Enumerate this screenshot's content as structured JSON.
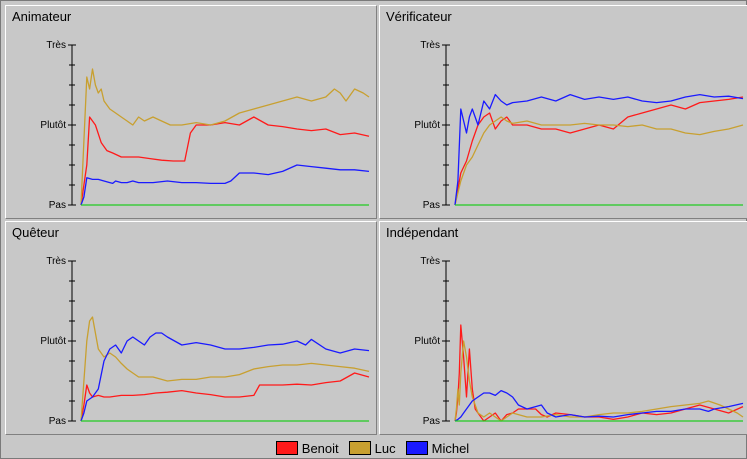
{
  "colors": {
    "Benoit": "#ff1a1a",
    "Luc": "#c8a030",
    "Michel": "#1a1aff",
    "baseline": "#22cc22"
  },
  "legend": {
    "items": [
      {
        "label": "Benoit",
        "color": "#ff1a1a"
      },
      {
        "label": "Luc",
        "color": "#c8a030"
      },
      {
        "label": "Michel",
        "color": "#1a1aff"
      }
    ]
  },
  "chart_data": [
    {
      "type": "line",
      "title": "Animateur",
      "yticks": [
        "Pas",
        "Plutôt",
        "Très"
      ],
      "ylim": [
        0,
        2
      ],
      "xlim": [
        0,
        100
      ],
      "series": [
        {
          "name": "Benoit",
          "x": [
            0,
            2,
            3,
            4,
            5,
            7,
            9,
            11,
            14,
            17,
            20,
            24,
            28,
            32,
            36,
            38,
            40,
            42,
            45,
            50,
            55,
            60,
            65,
            70,
            75,
            80,
            85,
            90,
            95,
            100
          ],
          "y": [
            0,
            0.5,
            1.1,
            1.05,
            1.0,
            0.78,
            0.68,
            0.65,
            0.6,
            0.6,
            0.6,
            0.58,
            0.56,
            0.55,
            0.55,
            0.9,
            1.0,
            1.0,
            1.0,
            1.03,
            1.0,
            1.1,
            1.0,
            0.98,
            0.95,
            0.93,
            0.95,
            0.88,
            0.9,
            0.86
          ]
        },
        {
          "name": "Luc",
          "x": [
            0,
            1,
            2,
            3,
            4,
            5,
            6,
            7,
            8,
            10,
            12,
            14,
            16,
            18,
            20,
            22,
            25,
            28,
            31,
            35,
            40,
            45,
            50,
            55,
            60,
            65,
            70,
            75,
            80,
            85,
            88,
            90,
            92,
            95,
            98,
            100
          ],
          "y": [
            0,
            0.8,
            1.6,
            1.45,
            1.7,
            1.5,
            1.4,
            1.45,
            1.3,
            1.2,
            1.15,
            1.1,
            1.05,
            1.0,
            1.1,
            1.05,
            1.1,
            1.05,
            1.0,
            1.0,
            1.03,
            1.0,
            1.05,
            1.15,
            1.2,
            1.25,
            1.3,
            1.35,
            1.3,
            1.35,
            1.45,
            1.4,
            1.3,
            1.45,
            1.4,
            1.35
          ]
        },
        {
          "name": "Michel",
          "x": [
            0,
            1,
            2,
            4,
            6,
            8,
            10,
            11,
            12,
            14,
            16,
            18,
            20,
            25,
            30,
            35,
            40,
            45,
            50,
            52,
            55,
            60,
            65,
            70,
            75,
            80,
            85,
            90,
            95,
            100
          ],
          "y": [
            0,
            0.1,
            0.34,
            0.32,
            0.32,
            0.3,
            0.28,
            0.27,
            0.3,
            0.28,
            0.28,
            0.3,
            0.28,
            0.28,
            0.3,
            0.28,
            0.28,
            0.27,
            0.27,
            0.3,
            0.4,
            0.4,
            0.38,
            0.42,
            0.5,
            0.48,
            0.46,
            0.44,
            0.44,
            0.42
          ]
        },
        {
          "name": "",
          "x": [
            0,
            100
          ],
          "y": [
            0,
            0
          ],
          "role": "baseline"
        }
      ]
    },
    {
      "type": "line",
      "title": "Vérificateur",
      "yticks": [
        "Pas",
        "Plutôt",
        "Très"
      ],
      "ylim": [
        0,
        2
      ],
      "xlim": [
        0,
        100
      ],
      "series": [
        {
          "name": "Benoit",
          "x": [
            0,
            2,
            4,
            6,
            8,
            10,
            12,
            14,
            16,
            18,
            20,
            25,
            30,
            35,
            40,
            45,
            50,
            55,
            60,
            65,
            70,
            75,
            80,
            85,
            90,
            95,
            100
          ],
          "y": [
            0,
            0.4,
            0.55,
            0.8,
            1.0,
            1.1,
            1.15,
            0.95,
            1.05,
            1.1,
            1.0,
            1.0,
            0.95,
            0.95,
            0.9,
            0.95,
            1.0,
            0.95,
            1.1,
            1.15,
            1.2,
            1.25,
            1.2,
            1.28,
            1.3,
            1.32,
            1.35
          ]
        },
        {
          "name": "Luc",
          "x": [
            0,
            2,
            4,
            6,
            8,
            10,
            12,
            14,
            16,
            18,
            20,
            25,
            30,
            35,
            40,
            45,
            50,
            55,
            60,
            65,
            70,
            75,
            80,
            85,
            90,
            95,
            100
          ],
          "y": [
            0,
            0.3,
            0.5,
            0.6,
            0.75,
            0.9,
            1.0,
            1.05,
            1.1,
            1.05,
            1.02,
            1.05,
            1.0,
            1.0,
            1.0,
            1.02,
            1.0,
            1.0,
            0.98,
            1.0,
            0.95,
            0.95,
            0.9,
            0.88,
            0.92,
            0.95,
            1.0
          ]
        },
        {
          "name": "Michel",
          "x": [
            0,
            1,
            2,
            4,
            5,
            6,
            8,
            10,
            12,
            14,
            16,
            18,
            20,
            25,
            30,
            35,
            40,
            45,
            50,
            55,
            60,
            65,
            70,
            75,
            80,
            85,
            90,
            95,
            100
          ],
          "y": [
            0,
            0.3,
            1.2,
            0.9,
            1.1,
            1.2,
            1.0,
            1.3,
            1.2,
            1.38,
            1.3,
            1.25,
            1.28,
            1.3,
            1.35,
            1.3,
            1.38,
            1.32,
            1.35,
            1.32,
            1.35,
            1.3,
            1.28,
            1.3,
            1.35,
            1.38,
            1.35,
            1.36,
            1.33
          ]
        },
        {
          "name": "",
          "x": [
            0,
            100
          ],
          "y": [
            0,
            0
          ],
          "role": "baseline"
        }
      ]
    },
    {
      "type": "line",
      "title": "Quêteur",
      "yticks": [
        "Pas",
        "Plutôt",
        "Très"
      ],
      "ylim": [
        0,
        2
      ],
      "xlim": [
        0,
        100
      ],
      "series": [
        {
          "name": "Benoit",
          "x": [
            0,
            1,
            2,
            3,
            4,
            6,
            8,
            10,
            14,
            18,
            22,
            26,
            30,
            35,
            40,
            45,
            50,
            55,
            60,
            62,
            66,
            70,
            75,
            80,
            85,
            90,
            95,
            100
          ],
          "y": [
            0,
            0.2,
            0.45,
            0.35,
            0.3,
            0.32,
            0.3,
            0.3,
            0.32,
            0.32,
            0.33,
            0.35,
            0.36,
            0.38,
            0.35,
            0.33,
            0.3,
            0.3,
            0.32,
            0.45,
            0.45,
            0.45,
            0.46,
            0.45,
            0.48,
            0.5,
            0.6,
            0.55
          ]
        },
        {
          "name": "Luc",
          "x": [
            0,
            1,
            2,
            3,
            4,
            5,
            6,
            8,
            10,
            12,
            14,
            16,
            18,
            20,
            25,
            30,
            35,
            40,
            45,
            50,
            55,
            60,
            65,
            70,
            75,
            80,
            85,
            90,
            95,
            100
          ],
          "y": [
            0,
            0.5,
            1.0,
            1.25,
            1.3,
            1.1,
            0.9,
            0.8,
            0.85,
            0.8,
            0.72,
            0.65,
            0.6,
            0.55,
            0.55,
            0.5,
            0.52,
            0.52,
            0.55,
            0.55,
            0.58,
            0.65,
            0.68,
            0.7,
            0.7,
            0.72,
            0.7,
            0.68,
            0.66,
            0.62
          ]
        },
        {
          "name": "Michel",
          "x": [
            0,
            1,
            2,
            4,
            6,
            8,
            10,
            12,
            14,
            16,
            18,
            20,
            22,
            24,
            26,
            28,
            30,
            35,
            40,
            45,
            50,
            55,
            60,
            65,
            70,
            75,
            78,
            80,
            85,
            90,
            95,
            100
          ],
          "y": [
            0,
            0.1,
            0.25,
            0.3,
            0.4,
            0.75,
            0.9,
            0.95,
            0.85,
            1.0,
            1.05,
            1.0,
            0.95,
            1.05,
            1.1,
            1.1,
            1.05,
            0.95,
            0.98,
            0.95,
            0.9,
            0.9,
            0.92,
            0.95,
            0.96,
            1.0,
            0.95,
            1.02,
            0.9,
            0.85,
            0.9,
            0.88
          ]
        },
        {
          "name": "",
          "x": [
            0,
            100
          ],
          "y": [
            0,
            0
          ],
          "role": "baseline"
        }
      ]
    },
    {
      "type": "line",
      "title": "Indépendant",
      "yticks": [
        "Pas",
        "Plutôt",
        "Très"
      ],
      "ylim": [
        0,
        2
      ],
      "xlim": [
        0,
        100
      ],
      "series": [
        {
          "name": "Benoit",
          "x": [
            0,
            0.5,
            1,
            1.5,
            2,
            3,
            4,
            5,
            6,
            7,
            8,
            10,
            12,
            14,
            16,
            18,
            20,
            22,
            25,
            28,
            30,
            32,
            35,
            40,
            45,
            50,
            55,
            60,
            65,
            70,
            75,
            80,
            85,
            90,
            95,
            100
          ],
          "y": [
            0,
            0.1,
            0.3,
            0.6,
            1.2,
            0.8,
            0.3,
            0.9,
            0.4,
            0.15,
            0.1,
            0.0,
            0.05,
            0.1,
            0.0,
            0.08,
            0.1,
            0.15,
            0.15,
            0.15,
            0.08,
            0.05,
            0.1,
            0.08,
            0.05,
            0.05,
            0.02,
            0.05,
            0.1,
            0.08,
            0.1,
            0.15,
            0.2,
            0.15,
            0.1,
            0.18
          ]
        },
        {
          "name": "Luc",
          "x": [
            0,
            0.5,
            1,
            1.5,
            2,
            3,
            4,
            5,
            6,
            7,
            8,
            10,
            12,
            14,
            16,
            18,
            20,
            22,
            25,
            30,
            35,
            40,
            45,
            50,
            55,
            60,
            65,
            70,
            75,
            80,
            85,
            88,
            92,
            95,
            98,
            100
          ],
          "y": [
            0,
            0.15,
            0.4,
            0.2,
            0.6,
            1.0,
            0.8,
            0.5,
            0.3,
            0.2,
            0.1,
            0.05,
            0.1,
            0.05,
            0.0,
            0.05,
            0.1,
            0.08,
            0.05,
            0.05,
            0.08,
            0.05,
            0.05,
            0.08,
            0.1,
            0.1,
            0.12,
            0.15,
            0.18,
            0.2,
            0.22,
            0.25,
            0.2,
            0.15,
            0.1,
            0.05
          ]
        },
        {
          "name": "Michel",
          "x": [
            0,
            1,
            2,
            3,
            4,
            5,
            6,
            8,
            10,
            12,
            14,
            16,
            18,
            20,
            22,
            25,
            28,
            30,
            32,
            35,
            40,
            45,
            50,
            55,
            60,
            65,
            70,
            75,
            80,
            85,
            88,
            90,
            95,
            100
          ],
          "y": [
            0,
            0.02,
            0.05,
            0.1,
            0.15,
            0.2,
            0.25,
            0.3,
            0.35,
            0.35,
            0.32,
            0.38,
            0.35,
            0.3,
            0.2,
            0.15,
            0.18,
            0.2,
            0.1,
            0.05,
            0.08,
            0.05,
            0.06,
            0.05,
            0.08,
            0.1,
            0.12,
            0.12,
            0.15,
            0.15,
            0.12,
            0.15,
            0.18,
            0.22
          ]
        },
        {
          "name": "",
          "x": [
            0,
            100
          ],
          "y": [
            0,
            0
          ],
          "role": "baseline"
        }
      ]
    }
  ]
}
